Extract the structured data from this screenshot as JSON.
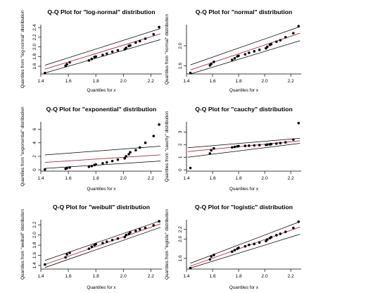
{
  "chart_data": [
    {
      "type": "scatter",
      "title": "Q-Q Plot for \"log-normal\" distribution",
      "xlabel": "Quantiles for x",
      "ylabel": "Quantiles from \"log-normal\" distribution",
      "xlim": [
        1.4,
        2.28
      ],
      "ylim": [
        1.44,
        2.46
      ],
      "xticks": [
        1.4,
        1.6,
        1.8,
        2.0,
        2.2
      ],
      "yticks": [
        1.6,
        1.8,
        2.0,
        2.2,
        2.4
      ],
      "tick_labels": [
        "1.4",
        "1.6",
        "1.8",
        "2.0",
        "2.2",
        "1.6",
        "1.8",
        "2.0",
        "2.2",
        "2.4"
      ],
      "points": [
        [
          1.43,
          1.46
        ],
        [
          1.58,
          1.61
        ],
        [
          1.59,
          1.64
        ],
        [
          1.61,
          1.68
        ],
        [
          1.75,
          1.72
        ],
        [
          1.77,
          1.75
        ],
        [
          1.79,
          1.79
        ],
        [
          1.8,
          1.8
        ],
        [
          1.85,
          1.83
        ],
        [
          1.88,
          1.86
        ],
        [
          1.92,
          1.9
        ],
        [
          1.96,
          1.93
        ],
        [
          2.01,
          1.95
        ],
        [
          2.02,
          1.98
        ],
        [
          2.04,
          2.02
        ],
        [
          2.05,
          2.03
        ],
        [
          2.09,
          2.09
        ],
        [
          2.12,
          2.12
        ],
        [
          2.16,
          2.17
        ],
        [
          2.22,
          2.26
        ],
        [
          2.26,
          2.41
        ]
      ],
      "lines": [
        {
          "role": "upper",
          "x": [
            1.43,
            2.27
          ],
          "y": [
            1.62,
            2.38
          ]
        },
        {
          "role": "fit",
          "x": [
            1.43,
            2.27
          ],
          "y": [
            1.54,
            2.27
          ]
        },
        {
          "role": "lower",
          "x": [
            1.43,
            2.27
          ],
          "y": [
            1.46,
            2.15
          ]
        }
      ]
    },
    {
      "type": "scatter",
      "title": "Q-Q Plot for \"normal\" distribution",
      "xlabel": "Quantiles for x",
      "ylabel": "Quantiles from \"normal\" distribution",
      "xlim": [
        1.4,
        2.28
      ],
      "ylim": [
        1.44,
        2.42
      ],
      "xticks": [
        1.4,
        1.6,
        1.8,
        2.0,
        2.2
      ],
      "yticks": [
        1.6,
        2.0
      ],
      "tick_labels": [
        "1.4",
        "1.6",
        "1.8",
        "2.0",
        "2.2",
        "1.6",
        "2.0"
      ],
      "points": [
        [
          1.43,
          1.46
        ],
        [
          1.58,
          1.61
        ],
        [
          1.59,
          1.64
        ],
        [
          1.61,
          1.68
        ],
        [
          1.75,
          1.72
        ],
        [
          1.77,
          1.75
        ],
        [
          1.79,
          1.79
        ],
        [
          1.8,
          1.8
        ],
        [
          1.85,
          1.83
        ],
        [
          1.88,
          1.86
        ],
        [
          1.92,
          1.89
        ],
        [
          1.96,
          1.92
        ],
        [
          2.01,
          1.95
        ],
        [
          2.02,
          1.98
        ],
        [
          2.04,
          2.02
        ],
        [
          2.05,
          2.03
        ],
        [
          2.09,
          2.08
        ],
        [
          2.12,
          2.11
        ],
        [
          2.16,
          2.17
        ],
        [
          2.22,
          2.25
        ],
        [
          2.26,
          2.39
        ]
      ],
      "lines": [
        {
          "role": "upper",
          "x": [
            1.43,
            2.27
          ],
          "y": [
            1.62,
            2.38
          ]
        },
        {
          "role": "fit",
          "x": [
            1.43,
            2.27
          ],
          "y": [
            1.52,
            2.25
          ]
        },
        {
          "role": "lower",
          "x": [
            1.43,
            2.27
          ],
          "y": [
            1.44,
            2.1
          ]
        }
      ]
    },
    {
      "type": "scatter",
      "title": "Q-Q Plot for \"exponential\" distribution",
      "xlabel": "Quantiles for x",
      "ylabel": "Quantiles from \"exponential\" distribution",
      "xlim": [
        1.4,
        2.28
      ],
      "ylim": [
        -0.2,
        7.1
      ],
      "xticks": [
        1.4,
        1.6,
        1.8,
        2.0,
        2.2
      ],
      "yticks": [
        0,
        2,
        4,
        6
      ],
      "tick_labels": [
        "1.4",
        "1.6",
        "1.8",
        "2.0",
        "2.2",
        "0",
        "2",
        "4",
        "6"
      ],
      "points": [
        [
          1.43,
          0.05
        ],
        [
          1.58,
          0.15
        ],
        [
          1.59,
          0.25
        ],
        [
          1.61,
          0.35
        ],
        [
          1.75,
          0.45
        ],
        [
          1.77,
          0.55
        ],
        [
          1.79,
          0.7
        ],
        [
          1.8,
          0.8
        ],
        [
          1.85,
          0.95
        ],
        [
          1.88,
          1.1
        ],
        [
          1.92,
          1.3
        ],
        [
          1.96,
          1.5
        ],
        [
          2.01,
          1.7
        ],
        [
          2.02,
          2.0
        ],
        [
          2.04,
          2.3
        ],
        [
          2.05,
          2.6
        ],
        [
          2.09,
          2.9
        ],
        [
          2.12,
          3.3
        ],
        [
          2.16,
          4.0
        ],
        [
          2.22,
          5.0
        ],
        [
          2.26,
          6.7
        ]
      ],
      "lines": [
        {
          "role": "upper",
          "x": [
            1.43,
            2.27
          ],
          "y": [
            2.2,
            3.5
          ]
        },
        {
          "role": "fit",
          "x": [
            1.43,
            2.27
          ],
          "y": [
            1.1,
            2.2
          ]
        },
        {
          "role": "lower",
          "x": [
            1.43,
            2.27
          ],
          "y": [
            0.2,
            1.3
          ]
        }
      ]
    },
    {
      "type": "scatter",
      "title": "Q-Q Plot for \"cauchy\" distribution",
      "xlabel": "Quantiles for x",
      "ylabel": "Quantiles from \"cauchy\" distribution",
      "xlim": [
        1.4,
        2.28
      ],
      "ylim": [
        -0.1,
        3.8
      ],
      "xticks": [
        1.4,
        1.6,
        1.8,
        2.0,
        2.2
      ],
      "yticks": [
        0,
        1,
        2,
        3
      ],
      "tick_labels": [
        "1.4",
        "1.6",
        "1.8",
        "2.0",
        "2.2",
        "0",
        "1",
        "2",
        "3"
      ],
      "points": [
        [
          1.43,
          0.15
        ],
        [
          1.58,
          1.3
        ],
        [
          1.59,
          1.55
        ],
        [
          1.61,
          1.7
        ],
        [
          1.75,
          1.78
        ],
        [
          1.77,
          1.82
        ],
        [
          1.79,
          1.86
        ],
        [
          1.8,
          1.88
        ],
        [
          1.85,
          1.9
        ],
        [
          1.88,
          1.92
        ],
        [
          1.92,
          1.94
        ],
        [
          1.96,
          1.96
        ],
        [
          2.01,
          1.98
        ],
        [
          2.02,
          2.0
        ],
        [
          2.04,
          2.02
        ],
        [
          2.05,
          2.04
        ],
        [
          2.09,
          2.08
        ],
        [
          2.12,
          2.12
        ],
        [
          2.16,
          2.18
        ],
        [
          2.22,
          2.4
        ],
        [
          2.26,
          3.7
        ]
      ],
      "lines": [
        {
          "role": "upper",
          "x": [
            1.41,
            2.27
          ],
          "y": [
            1.75,
            2.5
          ]
        },
        {
          "role": "fit",
          "x": [
            1.41,
            2.27
          ],
          "y": [
            1.45,
            2.3
          ]
        },
        {
          "role": "lower",
          "x": [
            1.41,
            2.27
          ],
          "y": [
            1.0,
            2.1
          ]
        }
      ]
    },
    {
      "type": "scatter",
      "title": "Q-Q Plot for \"weibull\" distribution",
      "xlabel": "Quantiles for x",
      "ylabel": "Quantiles from \"weibull\" distribution",
      "xlim": [
        1.4,
        2.28
      ],
      "ylim": [
        1.33,
        2.3
      ],
      "xticks": [
        1.4,
        1.6,
        1.8,
        2.0,
        2.2
      ],
      "yticks": [
        1.4,
        1.6,
        1.8,
        2.0,
        2.2
      ],
      "tick_labels": [
        "1.4",
        "1.6",
        "1.8",
        "2.0",
        "2.2",
        "1.4",
        "1.6",
        "1.8",
        "2.0",
        "2.2"
      ],
      "points": [
        [
          1.43,
          1.42
        ],
        [
          1.58,
          1.56
        ],
        [
          1.59,
          1.62
        ],
        [
          1.61,
          1.65
        ],
        [
          1.75,
          1.73
        ],
        [
          1.77,
          1.77
        ],
        [
          1.79,
          1.8
        ],
        [
          1.8,
          1.82
        ],
        [
          1.85,
          1.84
        ],
        [
          1.88,
          1.87
        ],
        [
          1.92,
          1.9
        ],
        [
          1.96,
          1.93
        ],
        [
          2.01,
          1.96
        ],
        [
          2.02,
          2.0
        ],
        [
          2.04,
          2.02
        ],
        [
          2.05,
          2.05
        ],
        [
          2.09,
          2.08
        ],
        [
          2.12,
          2.11
        ],
        [
          2.16,
          2.14
        ],
        [
          2.22,
          2.19
        ],
        [
          2.26,
          2.27
        ]
      ],
      "lines": [
        {
          "role": "upper",
          "x": [
            1.43,
            2.27
          ],
          "y": [
            1.5,
            2.28
          ]
        },
        {
          "role": "fit",
          "x": [
            1.43,
            2.27
          ],
          "y": [
            1.42,
            2.22
          ]
        },
        {
          "role": "lower",
          "x": [
            1.43,
            2.27
          ],
          "y": [
            1.36,
            2.15
          ]
        }
      ]
    },
    {
      "type": "scatter",
      "title": "Q-Q Plot for \"logistic\" distribution",
      "xlabel": "Quantiles for x",
      "ylabel": "Quantiles from \"logistic\" distribution",
      "xlim": [
        1.4,
        2.28
      ],
      "ylim": [
        1.38,
        2.4
      ],
      "xticks": [
        1.4,
        1.6,
        1.8,
        2.0,
        2.2
      ],
      "yticks": [
        1.6,
        2.0,
        2.2
      ],
      "tick_labels": [
        "1.4",
        "1.6",
        "1.8",
        "2.0",
        "2.2",
        "1.6",
        "2.0",
        "2.2"
      ],
      "points": [
        [
          1.43,
          1.4
        ],
        [
          1.58,
          1.58
        ],
        [
          1.59,
          1.64
        ],
        [
          1.61,
          1.67
        ],
        [
          1.75,
          1.74
        ],
        [
          1.77,
          1.77
        ],
        [
          1.79,
          1.8
        ],
        [
          1.8,
          1.82
        ],
        [
          1.85,
          1.85
        ],
        [
          1.88,
          1.88
        ],
        [
          1.92,
          1.9
        ],
        [
          1.96,
          1.93
        ],
        [
          2.01,
          1.96
        ],
        [
          2.02,
          1.99
        ],
        [
          2.04,
          2.02
        ],
        [
          2.05,
          2.04
        ],
        [
          2.09,
          2.08
        ],
        [
          2.12,
          2.11
        ],
        [
          2.16,
          2.15
        ],
        [
          2.22,
          2.23
        ],
        [
          2.26,
          2.36
        ]
      ],
      "lines": [
        {
          "role": "upper",
          "x": [
            1.43,
            2.27
          ],
          "y": [
            1.5,
            2.36
          ]
        },
        {
          "role": "fit",
          "x": [
            1.43,
            2.27
          ],
          "y": [
            1.44,
            2.25
          ]
        },
        {
          "role": "lower",
          "x": [
            1.43,
            2.27
          ],
          "y": [
            1.4,
            2.1
          ]
        }
      ]
    }
  ],
  "colors": {
    "fit_line": "#b0283c",
    "envelope_line": "#000000",
    "point": "#000000",
    "axis": "#000000"
  }
}
